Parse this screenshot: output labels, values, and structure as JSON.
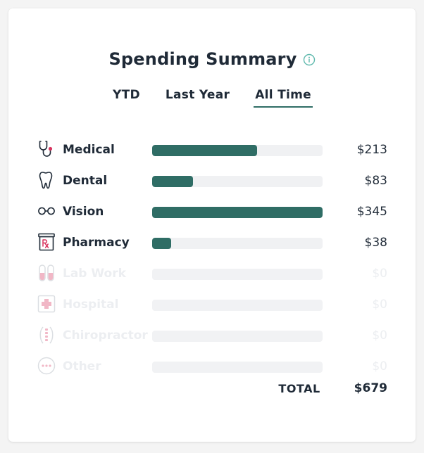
{
  "header": {
    "title": "Spending Summary",
    "info_icon": "info-circle-icon"
  },
  "tabs": [
    {
      "label": "YTD",
      "active": false
    },
    {
      "label": "Last Year",
      "active": false
    },
    {
      "label": "All Time",
      "active": true
    }
  ],
  "colors": {
    "accent": "#2f6d65",
    "pink": "#d8345f",
    "text": "#1f2a37",
    "track": "#f0f1f3"
  },
  "categories": [
    {
      "label": "Medical",
      "amount": "$213",
      "value": 213,
      "icon": "stethoscope-icon"
    },
    {
      "label": "Dental",
      "amount": "$83",
      "value": 83,
      "icon": "tooth-icon"
    },
    {
      "label": "Vision",
      "amount": "$345",
      "value": 345,
      "icon": "glasses-icon"
    },
    {
      "label": "Pharmacy",
      "amount": "$38",
      "value": 38,
      "icon": "rx-icon"
    },
    {
      "label": "Lab Work",
      "amount": "$0",
      "value": 0,
      "icon": "test-tubes-icon"
    },
    {
      "label": "Hospital",
      "amount": "$0",
      "value": 0,
      "icon": "hospital-cross-icon"
    },
    {
      "label": "Chiropractor",
      "amount": "$0",
      "value": 0,
      "icon": "spine-icon"
    },
    {
      "label": "Other",
      "amount": "$0",
      "value": 0,
      "icon": "dots-icon"
    }
  ],
  "scale_max": 345,
  "total": {
    "label": "TOTAL",
    "amount": "$679"
  }
}
